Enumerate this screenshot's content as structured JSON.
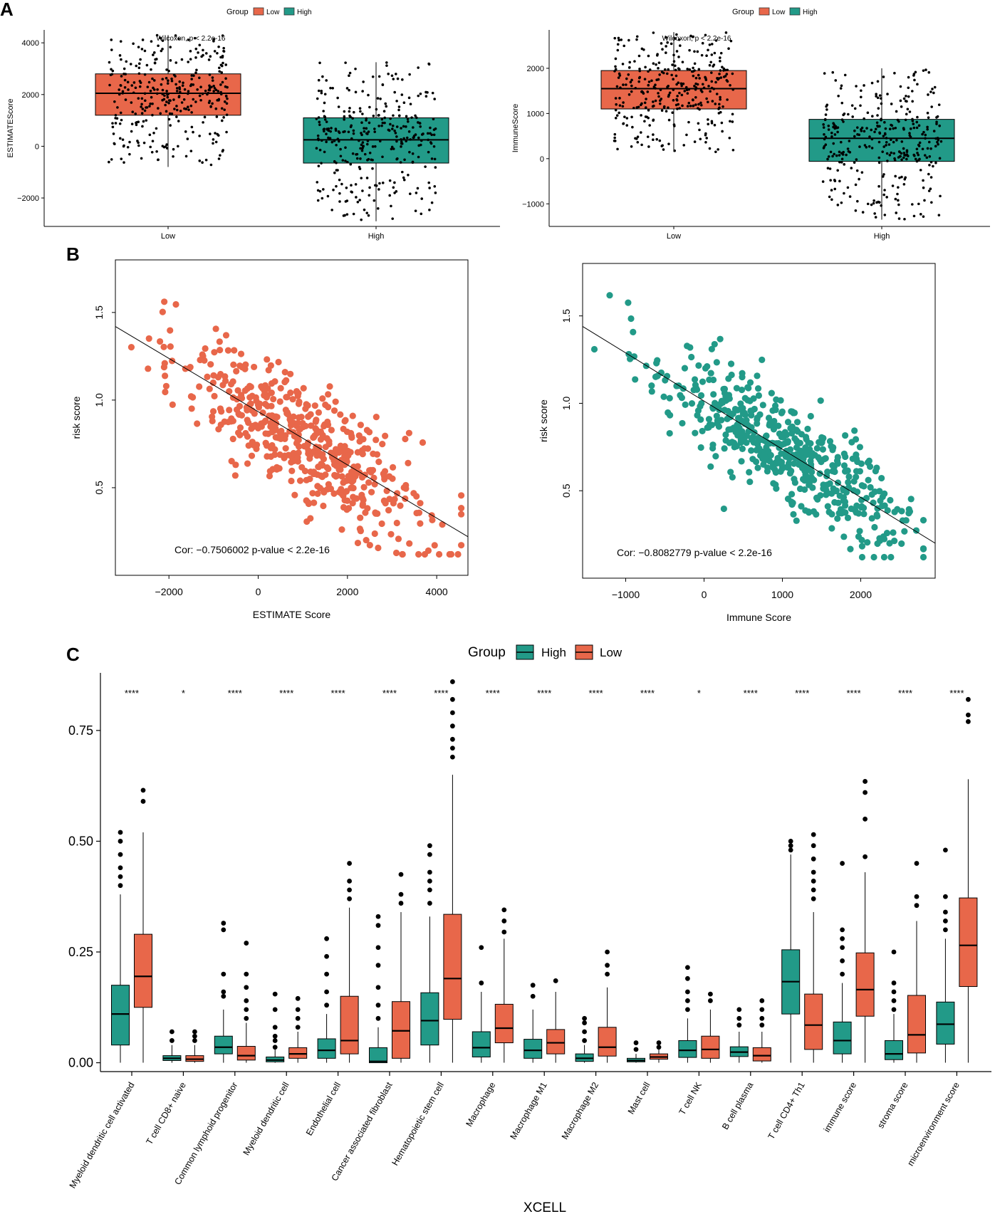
{
  "colors": {
    "low": "#E8674A",
    "high": "#229A88",
    "axis": "#000000",
    "point": "#000000"
  },
  "panel_labels": [
    "A",
    "B",
    "C"
  ],
  "chart_data": [
    {
      "id": "A1",
      "type": "boxplot",
      "legend_title": "Group",
      "legend_items": [
        "Low",
        "High"
      ],
      "annotation": "Wilcoxon, p < 2.2e-16",
      "categories": [
        "Low",
        "High"
      ],
      "ylabel": "ESTIMATEScore",
      "xlabel": "",
      "ylim": [
        -3100,
        4500
      ],
      "yticks": [
        4000,
        2000,
        0,
        -2000
      ],
      "ytick_labels": [
        "4000",
        "2000",
        "0",
        "−2000"
      ],
      "boxes": [
        {
          "group": "Low",
          "q1": 1200,
          "median": 2050,
          "q3": 2800,
          "whisker_low": -800,
          "whisker_high": 4300
        },
        {
          "group": "High",
          "q1": -650,
          "median": 250,
          "q3": 1100,
          "whisker_low": -2900,
          "whisker_high": 3250
        }
      ]
    },
    {
      "id": "A2",
      "type": "boxplot",
      "legend_title": "Group",
      "legend_items": [
        "Low",
        "High"
      ],
      "annotation": "Wilcoxon, p < 2.2e-16",
      "categories": [
        "Low",
        "High"
      ],
      "ylabel": "ImmuneScore",
      "xlabel": "",
      "ylim": [
        -1500,
        2850
      ],
      "yticks": [
        2000,
        1000,
        0,
        -1000
      ],
      "ytick_labels": [
        "2000",
        "1000",
        "0",
        "−1000"
      ],
      "boxes": [
        {
          "group": "Low",
          "q1": 1100,
          "median": 1550,
          "q3": 1950,
          "whisker_low": 150,
          "whisker_high": 2800
        },
        {
          "group": "High",
          "q1": -60,
          "median": 450,
          "q3": 870,
          "whisker_low": -1350,
          "whisker_high": 2000
        }
      ]
    },
    {
      "id": "B1",
      "type": "scatter",
      "xlabel": "ESTIMATE Score",
      "ylabel": "risk score",
      "xlim": [
        -3200,
        4700
      ],
      "ylim": [
        0.0,
        1.8
      ],
      "xticks": [
        -2000,
        0,
        2000,
        4000
      ],
      "xtick_labels": [
        "−2000",
        "0",
        "2000",
        "4000"
      ],
      "yticks": [
        0.5,
        1.0,
        1.5
      ],
      "ytick_labels": [
        "0.5",
        "1.0",
        "1.5"
      ],
      "annotation": "Cor: −0.7506002  p-value < 2.2e-16",
      "fit_line": {
        "x0": -3200,
        "y0": 1.42,
        "x1": 4700,
        "y1": 0.22
      },
      "n_points": 520,
      "x_mean": 1000,
      "x_sd": 1400,
      "slope": -0.000152,
      "intercept": 0.93,
      "residual_sd": 0.17
    },
    {
      "id": "B2",
      "type": "scatter",
      "xlabel": "Immune Score",
      "ylabel": "risk score",
      "xlim": [
        -1550,
        2950
      ],
      "ylim": [
        0.0,
        1.8
      ],
      "xticks": [
        -1000,
        0,
        1000,
        2000
      ],
      "xtick_labels": [
        "−1000",
        "0",
        "1000",
        "2000"
      ],
      "yticks": [
        0.5,
        1.0,
        1.5
      ],
      "ytick_labels": [
        "0.5",
        "1.0",
        "1.5"
      ],
      "annotation": "Cor: −0.8082779  p-value < 2.2e-16",
      "fit_line": {
        "x0": -1550,
        "y0": 1.44,
        "x1": 2950,
        "y1": 0.2
      },
      "n_points": 520,
      "x_mean": 1000,
      "x_sd": 800,
      "slope": -0.000276,
      "intercept": 1.02,
      "residual_sd": 0.15
    },
    {
      "id": "C",
      "type": "boxplot",
      "legend_title": "Group",
      "legend_items": [
        "High",
        "Low"
      ],
      "xlabel": "XCELL",
      "ylabel": "",
      "ylim": [
        -0.02,
        0.88
      ],
      "yticks": [
        0.0,
        0.25,
        0.5,
        0.75
      ],
      "ytick_labels": [
        "0.00",
        "0.25",
        "0.50",
        "0.75"
      ],
      "categories": [
        "Myeloid dendritic cell activated",
        "T cell CD8+ naive",
        "Common lymphoid progenitor",
        "Myeloid dendritic cell",
        "Endothelial cell",
        "Cancer associated fibroblast",
        "Hematopoietic stem cell",
        "Macrophage",
        "Macrophage M1",
        "Macrophage M2",
        "Mast cell",
        "T cell NK",
        "B cell plasma",
        "T cell CD4+ Th1",
        "immune score",
        "stroma score",
        "microenvironment score"
      ],
      "significance": [
        "****",
        "*",
        "****",
        "****",
        "****",
        "****",
        "****",
        "****",
        "****",
        "****",
        "****",
        "*",
        "****",
        "****",
        "****",
        "****",
        "****"
      ],
      "boxes": [
        {
          "high": {
            "min": 0.0,
            "q1": 0.04,
            "median": 0.11,
            "q3": 0.175,
            "max": 0.38,
            "outliers": [
              0.4,
              0.42,
              0.44,
              0.47,
              0.5,
              0.52
            ]
          },
          "low": {
            "min": 0.0,
            "q1": 0.125,
            "median": 0.195,
            "q3": 0.29,
            "max": 0.52,
            "outliers": [
              0.59,
              0.615
            ]
          }
        },
        {
          "high": {
            "min": 0.0,
            "q1": 0.005,
            "median": 0.01,
            "q3": 0.016,
            "max": 0.04,
            "outliers": [
              0.05,
              0.07
            ]
          },
          "low": {
            "min": 0.0,
            "q1": 0.003,
            "median": 0.008,
            "q3": 0.016,
            "max": 0.04,
            "outliers": [
              0.05,
              0.06,
              0.07
            ]
          }
        },
        {
          "high": {
            "min": 0.0,
            "q1": 0.02,
            "median": 0.035,
            "q3": 0.06,
            "max": 0.12,
            "outliers": [
              0.15,
              0.16,
              0.2,
              0.3,
              0.315
            ]
          },
          "low": {
            "min": 0.0,
            "q1": 0.006,
            "median": 0.016,
            "q3": 0.037,
            "max": 0.09,
            "outliers": [
              0.1,
              0.12,
              0.14,
              0.17,
              0.2,
              0.27
            ]
          }
        },
        {
          "high": {
            "min": 0.0,
            "q1": 0.002,
            "median": 0.006,
            "q3": 0.013,
            "max": 0.03,
            "outliers": [
              0.035,
              0.05,
              0.06,
              0.08,
              0.12,
              0.155
            ]
          },
          "low": {
            "min": 0.0,
            "q1": 0.01,
            "median": 0.02,
            "q3": 0.034,
            "max": 0.07,
            "outliers": [
              0.08,
              0.1,
              0.12,
              0.145
            ]
          }
        },
        {
          "high": {
            "min": 0.0,
            "q1": 0.01,
            "median": 0.028,
            "q3": 0.054,
            "max": 0.11,
            "outliers": [
              0.13,
              0.16,
              0.2,
              0.24,
              0.28
            ]
          },
          "low": {
            "min": 0.0,
            "q1": 0.02,
            "median": 0.05,
            "q3": 0.15,
            "max": 0.35,
            "outliers": [
              0.37,
              0.39,
              0.41,
              0.45
            ]
          }
        },
        {
          "high": {
            "min": 0.0,
            "q1": 0.0,
            "median": 0.003,
            "q3": 0.034,
            "max": 0.08,
            "outliers": [
              0.1,
              0.13,
              0.17,
              0.22,
              0.26,
              0.31,
              0.33
            ]
          },
          "low": {
            "min": 0.0,
            "q1": 0.01,
            "median": 0.072,
            "q3": 0.138,
            "max": 0.34,
            "outliers": [
              0.36,
              0.38,
              0.425
            ]
          }
        },
        {
          "high": {
            "min": 0.0,
            "q1": 0.04,
            "median": 0.095,
            "q3": 0.158,
            "max": 0.33,
            "outliers": [
              0.36,
              0.39,
              0.41,
              0.43,
              0.47,
              0.49
            ]
          },
          "low": {
            "min": 0.0,
            "q1": 0.098,
            "median": 0.19,
            "q3": 0.335,
            "max": 0.65,
            "outliers": [
              0.69,
              0.71,
              0.73,
              0.76,
              0.79,
              0.82,
              0.86
            ]
          }
        },
        {
          "high": {
            "min": 0.0,
            "q1": 0.013,
            "median": 0.034,
            "q3": 0.07,
            "max": 0.16,
            "outliers": [
              0.18,
              0.26
            ]
          },
          "low": {
            "min": 0.0,
            "q1": 0.045,
            "median": 0.078,
            "q3": 0.132,
            "max": 0.28,
            "outliers": [
              0.295,
              0.32,
              0.345
            ]
          }
        },
        {
          "high": {
            "min": 0.0,
            "q1": 0.01,
            "median": 0.028,
            "q3": 0.053,
            "max": 0.12,
            "outliers": [
              0.15,
              0.175
            ]
          },
          "low": {
            "min": 0.0,
            "q1": 0.02,
            "median": 0.045,
            "q3": 0.075,
            "max": 0.16,
            "outliers": [
              0.185
            ]
          }
        },
        {
          "high": {
            "min": 0.0,
            "q1": 0.003,
            "median": 0.01,
            "q3": 0.02,
            "max": 0.04,
            "outliers": [
              0.05,
              0.07,
              0.09,
              0.1
            ]
          },
          "low": {
            "min": 0.0,
            "q1": 0.015,
            "median": 0.035,
            "q3": 0.08,
            "max": 0.17,
            "outliers": [
              0.2,
              0.22,
              0.25
            ]
          }
        },
        {
          "high": {
            "min": 0.0,
            "q1": 0.002,
            "median": 0.005,
            "q3": 0.01,
            "max": 0.02,
            "outliers": [
              0.03,
              0.045
            ]
          },
          "low": {
            "min": 0.0,
            "q1": 0.008,
            "median": 0.013,
            "q3": 0.02,
            "max": 0.03,
            "outliers": [
              0.035,
              0.045
            ]
          }
        },
        {
          "high": {
            "min": 0.0,
            "q1": 0.012,
            "median": 0.028,
            "q3": 0.05,
            "max": 0.1,
            "outliers": [
              0.12,
              0.14,
              0.16,
              0.19,
              0.215
            ]
          },
          "low": {
            "min": 0.0,
            "q1": 0.01,
            "median": 0.03,
            "q3": 0.06,
            "max": 0.12,
            "outliers": [
              0.14,
              0.155
            ]
          }
        },
        {
          "high": {
            "min": 0.0,
            "q1": 0.014,
            "median": 0.024,
            "q3": 0.036,
            "max": 0.07,
            "outliers": [
              0.085,
              0.1,
              0.12
            ]
          },
          "low": {
            "min": 0.0,
            "q1": 0.004,
            "median": 0.016,
            "q3": 0.034,
            "max": 0.07,
            "outliers": [
              0.085,
              0.1,
              0.12,
              0.14
            ]
          }
        },
        {
          "high": {
            "min": 0.0,
            "q1": 0.11,
            "median": 0.183,
            "q3": 0.255,
            "max": 0.47,
            "outliers": [
              0.48,
              0.49,
              0.5
            ]
          },
          "low": {
            "min": 0.0,
            "q1": 0.03,
            "median": 0.085,
            "q3": 0.155,
            "max": 0.34,
            "outliers": [
              0.37,
              0.39,
              0.41,
              0.43,
              0.46,
              0.49,
              0.515
            ]
          }
        },
        {
          "high": {
            "min": 0.0,
            "q1": 0.02,
            "median": 0.05,
            "q3": 0.092,
            "max": 0.18,
            "outliers": [
              0.2,
              0.23,
              0.26,
              0.28,
              0.3,
              0.45
            ]
          },
          "low": {
            "min": 0.0,
            "q1": 0.105,
            "median": 0.165,
            "q3": 0.248,
            "max": 0.43,
            "outliers": [
              0.465,
              0.55,
              0.61,
              0.635
            ]
          }
        },
        {
          "high": {
            "min": 0.0,
            "q1": 0.007,
            "median": 0.02,
            "q3": 0.05,
            "max": 0.11,
            "outliers": [
              0.12,
              0.14,
              0.16,
              0.18,
              0.25
            ]
          },
          "low": {
            "min": 0.0,
            "q1": 0.022,
            "median": 0.063,
            "q3": 0.152,
            "max": 0.32,
            "outliers": [
              0.355,
              0.375,
              0.45
            ]
          }
        },
        {
          "high": {
            "min": 0.0,
            "q1": 0.042,
            "median": 0.087,
            "q3": 0.137,
            "max": 0.28,
            "outliers": [
              0.3,
              0.32,
              0.34,
              0.375,
              0.48
            ]
          },
          "low": {
            "min": 0.0,
            "q1": 0.172,
            "median": 0.265,
            "q3": 0.372,
            "max": 0.64,
            "outliers": [
              0.77,
              0.785,
              0.82
            ]
          }
        }
      ]
    }
  ]
}
